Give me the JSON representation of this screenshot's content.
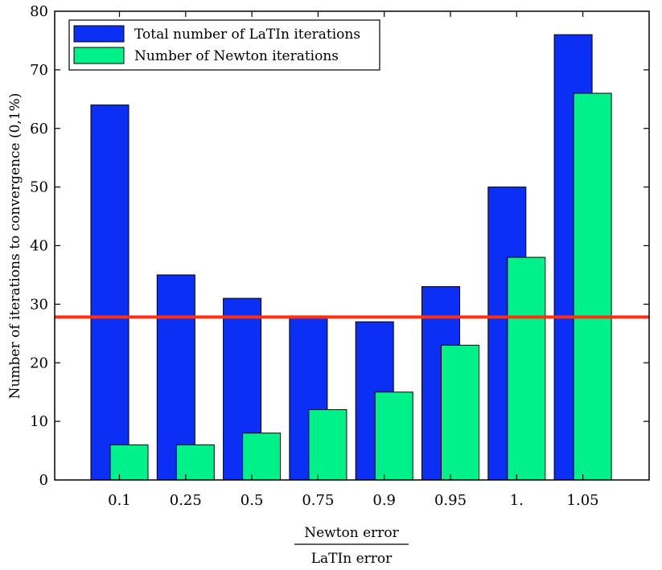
{
  "chart_data": {
    "type": "bar",
    "title": "",
    "xlabel": {
      "numerator": "Newton error",
      "denominator": "LaTIn error"
    },
    "ylabel": "Number of iterations to convergence (0,1%)",
    "categories": [
      "0.1",
      "0.25",
      "0.5",
      "0.75",
      "0.9",
      "0.95",
      "1.",
      "1.05"
    ],
    "series": [
      {
        "name": "Total number of LaTIn iterations",
        "color": "#0b2ff5",
        "values": [
          64,
          35,
          31,
          28,
          27,
          33,
          50,
          76
        ]
      },
      {
        "name": "Number of Newton iterations",
        "color": "#00f08a",
        "values": [
          6,
          6,
          8,
          12,
          15,
          23,
          38,
          66
        ]
      }
    ],
    "reference_line": {
      "value": 27.8,
      "color": "#ff3010"
    },
    "ylim": [
      0,
      80
    ],
    "yticks": [
      "0",
      "10",
      "20",
      "30",
      "40",
      "50",
      "60",
      "70",
      "80"
    ],
    "grid": false,
    "legend_position": "top-left"
  }
}
